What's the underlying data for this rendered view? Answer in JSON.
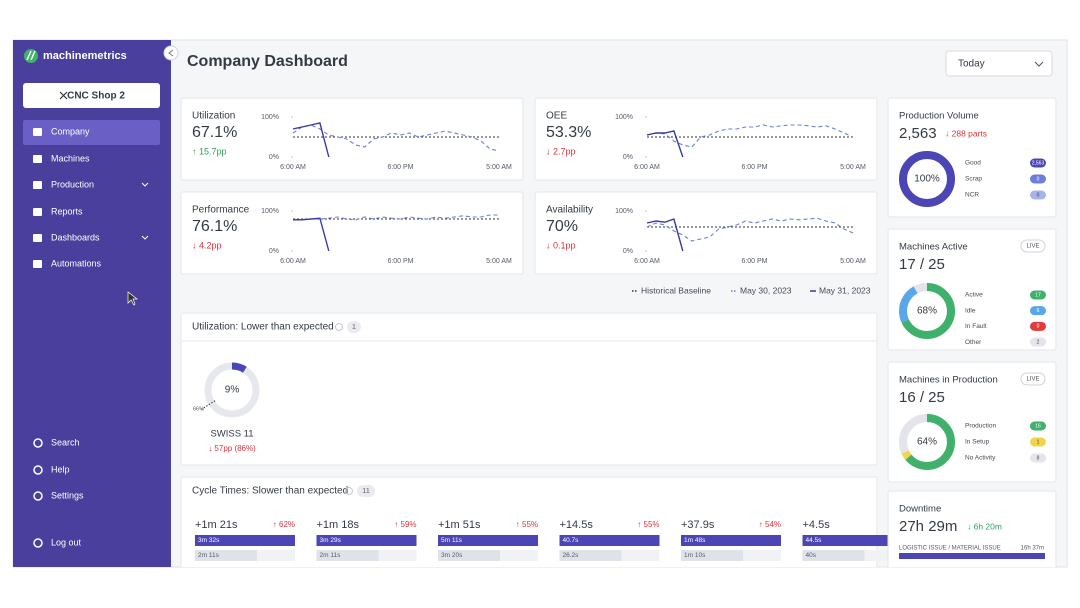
{
  "sidebar": {
    "brand": "machinemetrics",
    "shop_button": "CNC Shop 2",
    "nav": [
      "Company",
      "Machines",
      "Production",
      "Reports",
      "Dashboards",
      "Automations"
    ],
    "footer_nav": [
      "Search",
      "Help",
      "Settings",
      "Log out"
    ]
  },
  "header": {
    "title": "Company Dashboard",
    "range": "Today"
  },
  "sparkline_axis": {
    "ylim": [
      0,
      100
    ],
    "yticks": [
      {
        "value": 100,
        "label": "100%"
      },
      {
        "value": 0,
        "label": "0%"
      }
    ],
    "xticks": [
      "6:00 AM",
      "6:00 PM",
      "5:00 AM"
    ]
  },
  "legend": [
    {
      "name": "Historical Baseline",
      "color": "#333333"
    },
    {
      "name": "May 30, 2023",
      "color": "#6b7fd7"
    },
    {
      "name": "May 31, 2023",
      "color": "#3a3aa3"
    }
  ],
  "kpis": [
    {
      "label": "Utilization",
      "value": "67.1%",
      "delta": "↑ 15.7pp",
      "delta_color": "#2e9e5b",
      "baseline": 50,
      "may30": [
        60,
        75,
        80,
        70,
        55,
        50,
        45,
        30,
        25,
        45,
        50,
        60,
        55,
        60,
        50,
        55,
        60,
        65,
        60,
        55,
        50,
        40,
        20,
        15
      ],
      "may31": [
        70,
        75,
        80,
        85,
        0,
        null,
        null,
        null,
        null,
        null,
        null,
        null,
        null,
        null,
        null,
        null,
        null,
        null,
        null,
        null,
        null,
        null,
        null,
        null
      ]
    },
    {
      "label": "OEE",
      "value": "53.3%",
      "delta": "↓ 2.7pp",
      "delta_color": "#d9363e",
      "baseline": 50,
      "may30": [
        55,
        60,
        58,
        40,
        30,
        25,
        50,
        55,
        65,
        70,
        70,
        75,
        75,
        80,
        75,
        78,
        80,
        80,
        78,
        75,
        78,
        70,
        60,
        50
      ],
      "may31": [
        55,
        60,
        60,
        65,
        0,
        null,
        null,
        null,
        null,
        null,
        null,
        null,
        null,
        null,
        null,
        null,
        null,
        null,
        null,
        null,
        null,
        null,
        null,
        null
      ]
    },
    {
      "label": "Performance",
      "value": "76.1%",
      "delta": "↓ 4.2pp",
      "delta_color": "#d9363e",
      "baseline": 80,
      "may30": [
        78,
        79,
        80,
        80,
        82,
        85,
        80,
        78,
        85,
        80,
        85,
        82,
        80,
        85,
        82,
        80,
        85,
        82,
        85,
        88,
        85,
        85,
        90,
        90
      ],
      "may31": [
        78,
        78,
        80,
        82,
        0,
        null,
        null,
        null,
        null,
        null,
        null,
        null,
        null,
        null,
        null,
        null,
        null,
        null,
        null,
        null,
        null,
        null,
        null,
        null
      ]
    },
    {
      "label": "Availability",
      "value": "70%",
      "delta": "↓ 0.1pp",
      "delta_color": "#d9363e",
      "baseline": 60,
      "may30": [
        60,
        70,
        65,
        50,
        40,
        25,
        30,
        35,
        55,
        60,
        65,
        75,
        70,
        75,
        80,
        75,
        80,
        78,
        80,
        82,
        75,
        70,
        55,
        45
      ],
      "may31": [
        70,
        75,
        72,
        80,
        0,
        null,
        null,
        null,
        null,
        null,
        null,
        null,
        null,
        null,
        null,
        null,
        null,
        null,
        null,
        null,
        null,
        null,
        null,
        null
      ]
    }
  ],
  "utilization_alert": {
    "title": "Utilization: Lower than expected",
    "count": "1",
    "machine": {
      "name": "SWISS 11",
      "value": 9,
      "label": "9%",
      "baseline": 66,
      "baseline_label": "66%",
      "delta": "↓ 57pp (86%)"
    }
  },
  "cycle_times": {
    "title": "Cycle Times: Slower than expected",
    "count": "11",
    "items": [
      {
        "delta": "+1m 21s",
        "change": "↑ 62%",
        "current": "3m 32s",
        "expected": "2m 11s"
      },
      {
        "delta": "+1m 18s",
        "change": "↑ 59%",
        "current": "3m 29s",
        "expected": "2m 11s"
      },
      {
        "delta": "+1m 51s",
        "change": "↑ 55%",
        "current": "5m 11s",
        "expected": "3m 20s"
      },
      {
        "delta": "+14.5s",
        "change": "↑ 55%",
        "current": "40.7s",
        "expected": "26.2s"
      },
      {
        "delta": "+37.9s",
        "change": "↑ 54%",
        "current": "1m 48s",
        "expected": "1m 10s"
      },
      {
        "delta": "+4.5s",
        "current": "44.5s",
        "expected": "40s"
      }
    ]
  },
  "production_volume": {
    "title": "Production Volume",
    "value": "2,563",
    "delta": "↓ 288 parts",
    "percent_label": "100%",
    "segments": [
      {
        "name": "Good",
        "value": 2563,
        "label": "2,563",
        "color": "#4b45b5"
      },
      {
        "name": "Scrap",
        "value": 0,
        "color": "#6b7fd7"
      },
      {
        "name": "NCR",
        "value": 0,
        "color": "#a6b4ea"
      }
    ]
  },
  "machines_active": {
    "title": "Machines Active",
    "badge": "LIVE",
    "value": "17 / 25",
    "percent_label": "68%",
    "segments": [
      {
        "name": "Active",
        "value": 17,
        "color": "#3fb16a"
      },
      {
        "name": "Idle",
        "value": 6,
        "color": "#5aa7e8"
      },
      {
        "name": "In Fault",
        "value": 0,
        "color": "#e03c3c"
      },
      {
        "name": "Other",
        "value": 2,
        "color": "#e3e5ea"
      }
    ]
  },
  "machines_in_production": {
    "title": "Machines in Production",
    "badge": "LIVE",
    "value": "16 / 25",
    "percent_label": "64%",
    "segments": [
      {
        "name": "Production",
        "value": 16,
        "color": "#3fb16a"
      },
      {
        "name": "In Setup",
        "value": 1,
        "color": "#f0d54a"
      },
      {
        "name": "No Activity",
        "value": 8,
        "color": "#e3e5ea"
      }
    ]
  },
  "downtime": {
    "title": "Downtime",
    "value": "27h 29m",
    "delta": "↓ 6h 20m",
    "reason": "LOGISTIC ISSUE / MATERIAL ISSUE",
    "reason_value": "16h 37m"
  }
}
